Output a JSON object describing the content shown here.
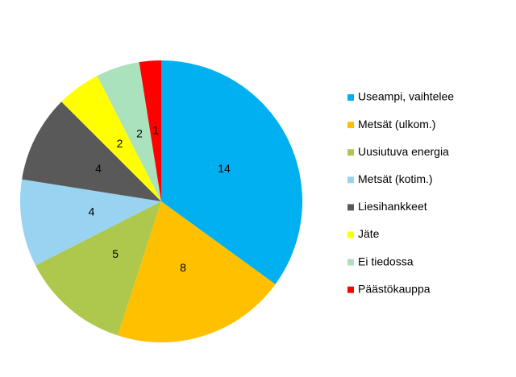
{
  "chart_data": {
    "type": "pie",
    "categories": [
      "Useampi, vaihtelee",
      "Metsät (ulkom.)",
      "Uusiutuva energia",
      "Metsät (kotim.)",
      "Liesihankkeet",
      "Jäte",
      "Ei tiedossa",
      "Päästökauppa"
    ],
    "values": [
      14,
      8,
      5,
      4,
      4,
      2,
      2,
      1
    ],
    "colors": [
      "#00b0f0",
      "#ffc000",
      "#adc84c",
      "#99d3f2",
      "#595959",
      "#ffff00",
      "#a9e2bc",
      "#ff0000"
    ],
    "legend": "right"
  }
}
